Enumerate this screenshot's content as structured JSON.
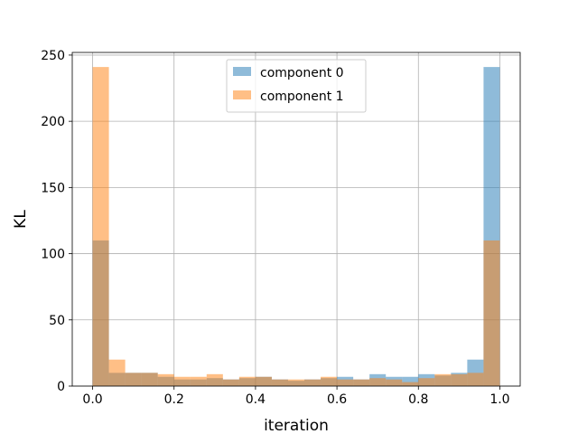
{
  "chart_data": {
    "type": "bar",
    "title": "",
    "xlabel": "iteration",
    "ylabel": "KL",
    "xlim": [
      -0.05,
      1.05
    ],
    "ylim": [
      0,
      252
    ],
    "xticks": [
      0.0,
      0.2,
      0.4,
      0.6,
      0.8,
      1.0
    ],
    "xtick_labels": [
      "0.0",
      "0.2",
      "0.4",
      "0.6",
      "0.8",
      "1.0"
    ],
    "yticks": [
      0,
      50,
      100,
      150,
      200,
      250
    ],
    "ytick_labels": [
      "0",
      "50",
      "100",
      "150",
      "200",
      "250"
    ],
    "grid": true,
    "legend_position": "top-center",
    "bin_edges": [
      0.0,
      0.04,
      0.08,
      0.12,
      0.16,
      0.2,
      0.24,
      0.28,
      0.32,
      0.36,
      0.4,
      0.44,
      0.48,
      0.52,
      0.56,
      0.6,
      0.64,
      0.68,
      0.72,
      0.76,
      0.8,
      0.84,
      0.88,
      0.92,
      0.96,
      1.0
    ],
    "series": [
      {
        "name": "component 0",
        "color": "#1f77b4",
        "values": [
          110,
          10,
          10,
          10,
          7,
          5,
          5,
          6,
          5,
          6,
          7,
          5,
          4,
          5,
          6,
          7,
          5,
          9,
          7,
          7,
          9,
          8,
          10,
          20,
          241
        ]
      },
      {
        "name": "component 1",
        "color": "#ff7f0e",
        "values": [
          241,
          20,
          10,
          10,
          9,
          7,
          7,
          9,
          5,
          7,
          7,
          5,
          5,
          5,
          7,
          5,
          5,
          6,
          5,
          3,
          6,
          9,
          9,
          10,
          110
        ]
      }
    ]
  }
}
